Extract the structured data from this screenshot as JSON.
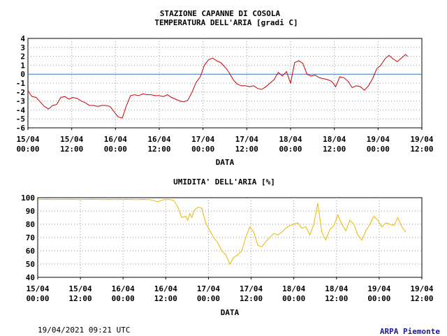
{
  "header": {
    "station": "STAZIONE CAPANNE DI COSOLA",
    "temp_title": "TEMPERATURA DELL'ARIA [gradi C]",
    "hum_title": "UMIDITA' DELL'ARIA [%]"
  },
  "footer": {
    "timestamp": "19/04/2021 09:21 UTC",
    "credit": "ARPA Piemonte"
  },
  "colors": {
    "temp_line": "#cc0000",
    "hum_line": "#e8b800",
    "zero_line": "#3a78c8",
    "grid": "#999999"
  },
  "chart_data": [
    {
      "type": "line",
      "title": "TEMPERATURA DELL'ARIA [gradi C]",
      "xlabel": "DATA",
      "ylabel": "",
      "ylim": [
        -6,
        4
      ],
      "yticks": [
        4,
        3,
        2,
        1,
        0,
        -1,
        -2,
        -3,
        -4,
        -5,
        -6
      ],
      "xlim_hours": [
        0,
        96
      ],
      "xticks": [
        [
          "15/04",
          "00:00"
        ],
        [
          "15/04",
          "12:00"
        ],
        [
          "16/04",
          "00:00"
        ],
        [
          "16/04",
          "12:00"
        ],
        [
          "17/04",
          "00:00"
        ],
        [
          "17/04",
          "12:00"
        ],
        [
          "18/04",
          "00:00"
        ],
        [
          "18/04",
          "12:00"
        ],
        [
          "19/04",
          "00:00"
        ],
        [
          "19/04",
          "12:00"
        ]
      ],
      "grid": true,
      "reference_line": 0,
      "series": [
        {
          "x": [
            0,
            0.5,
            1,
            2,
            3,
            4,
            5,
            6,
            7,
            8,
            9,
            10,
            11,
            12,
            13,
            14,
            15,
            16,
            17,
            18,
            19,
            20,
            21,
            22,
            23,
            24,
            25,
            26,
            27,
            28,
            29,
            30,
            31,
            32,
            33,
            34,
            35,
            36,
            37,
            38,
            39,
            40,
            41,
            42,
            43,
            44,
            45,
            46,
            47,
            48,
            49,
            50,
            51,
            52,
            53,
            54,
            55,
            56,
            57,
            58,
            59,
            60,
            61,
            62,
            63,
            64,
            65,
            66,
            67,
            68,
            69,
            70,
            71,
            72,
            73,
            74,
            75,
            76,
            77,
            78,
            79,
            80,
            81,
            82,
            83,
            84,
            85,
            86,
            87,
            88,
            89,
            90,
            91,
            92,
            92.5
          ],
          "values": [
            -1.8,
            -2.2,
            -2.5,
            -2.6,
            -3.1,
            -3.6,
            -3.9,
            -3.5,
            -3.4,
            -2.6,
            -2.5,
            -2.8,
            -2.6,
            -2.7,
            -3.0,
            -3.2,
            -3.5,
            -3.5,
            -3.6,
            -3.5,
            -3.5,
            -3.6,
            -4.2,
            -4.8,
            -4.9,
            -3.5,
            -2.4,
            -2.3,
            -2.4,
            -2.2,
            -2.3,
            -2.3,
            -2.4,
            -2.4,
            -2.5,
            -2.3,
            -2.6,
            -2.8,
            -3.0,
            -3.1,
            -2.9,
            -2.0,
            -0.9,
            -0.3,
            1.0,
            1.6,
            1.8,
            1.5,
            1.3,
            0.8,
            0.2,
            -0.6,
            -1.1,
            -1.3,
            -1.3,
            -1.4,
            -1.3,
            -1.6,
            -1.7,
            -1.4,
            -1.0,
            -0.6,
            0.2,
            -0.2,
            0.3,
            -1.0,
            1.3,
            1.5,
            1.2,
            0.0,
            -0.2,
            -0.1,
            -0.4,
            -0.5,
            -0.6,
            -0.8,
            -1.4,
            -0.3,
            -0.4,
            -0.8,
            -1.5,
            -1.3,
            -1.4,
            -1.8,
            -1.3,
            -0.5,
            0.6,
            1.0,
            1.7,
            2.1,
            1.7,
            1.4,
            1.8,
            2.2,
            2.0
          ]
        }
      ]
    },
    {
      "type": "line",
      "title": "UMIDITA' DELL'ARIA [%]",
      "xlabel": "DATA",
      "ylabel": "",
      "ylim": [
        40,
        100
      ],
      "yticks": [
        100,
        90,
        80,
        70,
        60,
        50,
        40
      ],
      "xlim_hours": [
        0,
        96
      ],
      "xticks": [
        [
          "15/04",
          "00:00"
        ],
        [
          "15/04",
          "12:00"
        ],
        [
          "16/04",
          "00:00"
        ],
        [
          "16/04",
          "12:00"
        ],
        [
          "17/04",
          "00:00"
        ],
        [
          "17/04",
          "12:00"
        ],
        [
          "18/04",
          "00:00"
        ],
        [
          "18/04",
          "12:00"
        ],
        [
          "19/04",
          "00:00"
        ],
        [
          "19/04",
          "12:00"
        ]
      ],
      "grid": true,
      "series": [
        {
          "x": [
            0,
            2,
            4,
            6,
            8,
            10,
            12,
            14,
            16,
            18,
            20,
            22,
            24,
            26,
            28,
            30,
            32,
            34,
            35,
            36,
            37,
            37.5,
            38,
            38.5,
            39,
            40,
            41,
            42,
            43,
            44,
            45,
            46,
            47,
            48,
            49,
            50,
            51,
            52,
            53,
            54,
            55,
            56,
            57,
            58,
            59,
            60,
            61,
            62,
            63,
            64,
            65,
            66,
            67,
            68,
            69,
            70,
            71,
            72,
            73,
            74,
            75,
            76,
            77,
            78,
            79,
            80,
            81,
            82,
            83,
            84,
            85,
            86,
            87,
            88,
            89,
            90,
            91,
            92
          ],
          "values": [
            98.5,
            98.8,
            98.6,
            98.7,
            98.8,
            98.6,
            98.7,
            98.8,
            98.6,
            98.7,
            98.6,
            98.8,
            98.5,
            98.7,
            98.6,
            97,
            99,
            98,
            93,
            85,
            86,
            83,
            88,
            85,
            90,
            93,
            92,
            81,
            75,
            70,
            66,
            60,
            57,
            50,
            55,
            57,
            60,
            70,
            78,
            74,
            64,
            63,
            67,
            70,
            73,
            72,
            74,
            77,
            79,
            80,
            81,
            77,
            78,
            72,
            80,
            96,
            74,
            68,
            76,
            79,
            87,
            80,
            75,
            83,
            80,
            72,
            68,
            75,
            80,
            86,
            83,
            78,
            81,
            80,
            79,
            85,
            78,
            74
          ]
        }
      ]
    }
  ]
}
